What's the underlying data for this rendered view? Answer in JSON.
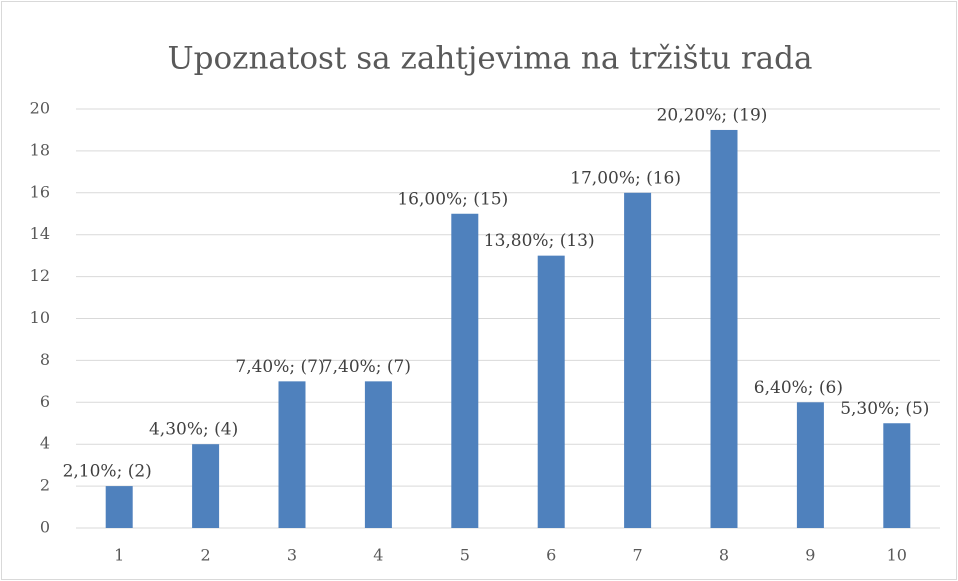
{
  "chart_data": {
    "type": "bar",
    "title": "Upoznatost sa zahtjevima na tržištu rada",
    "categories": [
      "1",
      "2",
      "3",
      "4",
      "5",
      "6",
      "7",
      "8",
      "9",
      "10"
    ],
    "values": [
      2,
      4,
      7,
      7,
      15,
      13,
      16,
      19,
      6,
      5
    ],
    "value_labels": [
      "2,10%; (2)",
      "4,30%; (4)",
      "7,40%; (7)",
      "7,40%; (7)",
      "16,00%; (15)",
      "13,80%; (13)",
      "17,00%; (16)",
      "20,20%; (19)",
      "6,40%; (6)",
      "5,30%; (5)"
    ],
    "color": "#4f81bd",
    "ylim": [
      0,
      20
    ],
    "yticks": [
      0,
      2,
      4,
      6,
      8,
      10,
      12,
      14,
      16,
      18,
      20
    ],
    "grid": true
  }
}
